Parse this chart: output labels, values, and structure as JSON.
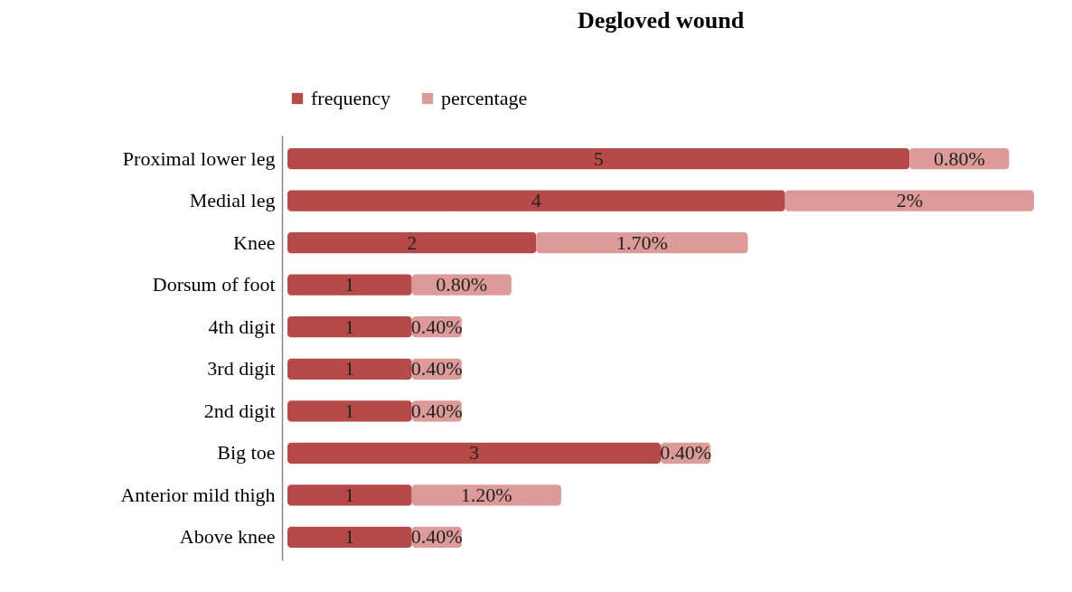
{
  "chart_data": {
    "type": "bar",
    "title": "Degloved wound",
    "orientation": "horizontal",
    "stacked": true,
    "legend": "top",
    "categories": [
      "Proximal lower leg",
      "Medial leg",
      "Knee ",
      "Dorsum of foot",
      "4th digit",
      "3rd digit ",
      "2nd digit",
      "Big toe ",
      "Anterior mild thigh",
      "Above knee"
    ],
    "series": [
      {
        "name": "frequency",
        "color": "#b54a48",
        "values": [
          5,
          4,
          2,
          1,
          1,
          1,
          1,
          3,
          1,
          1
        ],
        "value_labels": [
          "5",
          "4",
          "2",
          "1",
          "1",
          "1",
          "1",
          "3",
          "1",
          "1"
        ]
      },
      {
        "name": "percentage",
        "color": "#dc9a98",
        "values": [
          0.8,
          2,
          1.7,
          0.8,
          0.4,
          0.4,
          0.4,
          0.4,
          1.2,
          0.4
        ],
        "value_labels": [
          "0.80%",
          "2%",
          "1.70%",
          "0.80%",
          "0.40%",
          "0.40%",
          "0.40%",
          "0.40%",
          "1.20%",
          "0.40%"
        ]
      }
    ]
  }
}
